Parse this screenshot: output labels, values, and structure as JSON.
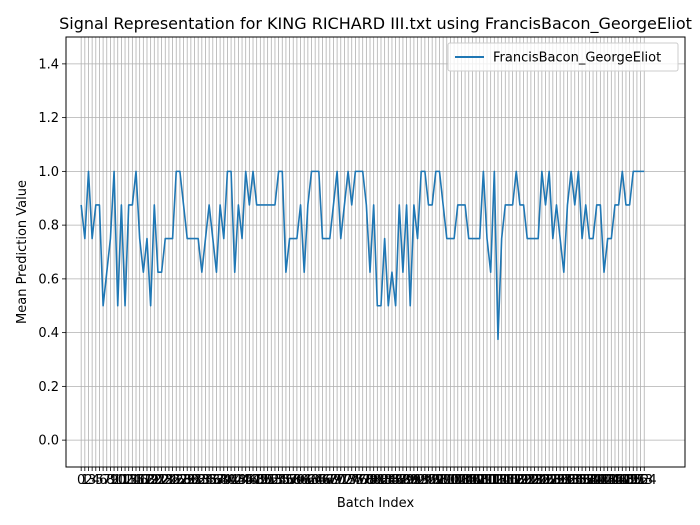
{
  "chart_data": {
    "type": "line",
    "title": "Signal Representation for KING RICHARD III.txt using FrancisBacon_GeorgeEliot",
    "xlabel": "Batch Index",
    "ylabel": "Mean Prediction Value",
    "ylim": [
      -0.1,
      1.5
    ],
    "yticks": [
      0.0,
      0.2,
      0.4,
      0.6,
      0.8,
      1.0,
      1.2,
      1.4
    ],
    "xlim": [
      -4.15,
      165.15
    ],
    "grid": true,
    "legend_position": "top-right",
    "series": [
      {
        "name": "FrancisBacon_GeorgeEliot",
        "color": "#1f77b4",
        "x_start": 0,
        "values": [
          0.875,
          0.75,
          1.0,
          0.75,
          0.875,
          0.875,
          0.5,
          0.625,
          0.75,
          1.0,
          0.5,
          0.875,
          0.5,
          0.875,
          0.875,
          1.0,
          0.75,
          0.625,
          0.75,
          0.5,
          0.875,
          0.625,
          0.625,
          0.75,
          0.75,
          0.75,
          1.0,
          1.0,
          0.875,
          0.75,
          0.75,
          0.75,
          0.75,
          0.625,
          0.75,
          0.875,
          0.75,
          0.625,
          0.875,
          0.75,
          1.0,
          1.0,
          0.625,
          0.875,
          0.75,
          1.0,
          0.875,
          1.0,
          0.875,
          0.875,
          0.875,
          0.875,
          0.875,
          0.875,
          1.0,
          1.0,
          0.625,
          0.75,
          0.75,
          0.75,
          0.875,
          0.625,
          0.875,
          1.0,
          1.0,
          1.0,
          0.75,
          0.75,
          0.75,
          0.875,
          1.0,
          0.75,
          0.875,
          1.0,
          0.875,
          1.0,
          1.0,
          1.0,
          0.875,
          0.625,
          0.875,
          0.5,
          0.5,
          0.75,
          0.5,
          0.625,
          0.5,
          0.875,
          0.625,
          0.875,
          0.5,
          0.875,
          0.75,
          1.0,
          1.0,
          0.875,
          0.875,
          1.0,
          1.0,
          0.875,
          0.75,
          0.75,
          0.75,
          0.875,
          0.875,
          0.875,
          0.75,
          0.75,
          0.75,
          0.75,
          1.0,
          0.75,
          0.625,
          1.0,
          0.375,
          0.75,
          0.875,
          0.875,
          0.875,
          1.0,
          0.875,
          0.875,
          0.75,
          0.75,
          0.75,
          0.75,
          1.0,
          0.875,
          1.0,
          0.75,
          0.875,
          0.75,
          0.625,
          0.875,
          1.0,
          0.875,
          1.0,
          0.75,
          0.875,
          0.75,
          0.75,
          0.875,
          0.875,
          0.625,
          0.75,
          0.75,
          0.875,
          0.875,
          1.0,
          0.875,
          0.875,
          1.0,
          1.0,
          1.0,
          1.0
        ]
      }
    ]
  }
}
